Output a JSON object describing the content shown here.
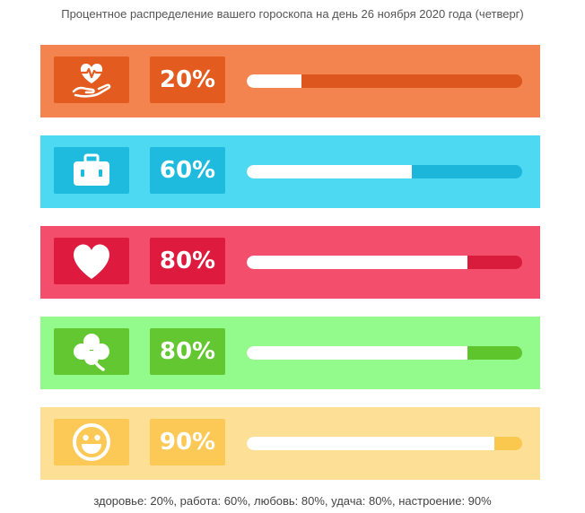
{
  "page": {
    "title": "Процентное распределение вашего гороскопа на день 26 ноября 2020 года (четверг)",
    "summary": "здоровье: 20%, работа: 60%, любовь: 80%, удача: 80%, настроение: 90%"
  },
  "bars": [
    {
      "key": "health",
      "icon": "heart-in-hand-icon",
      "percent_label": "20%",
      "value": 20,
      "colors": {
        "row": "#f3844f",
        "box": "#e35b1f",
        "bar": "#dc561e"
      }
    },
    {
      "key": "work",
      "icon": "briefcase-icon",
      "percent_label": "60%",
      "value": 60,
      "colors": {
        "row": "#4ed9f3",
        "box": "#1fbbdf",
        "bar": "#1db6db"
      }
    },
    {
      "key": "love",
      "icon": "heart-icon",
      "percent_label": "80%",
      "value": 80,
      "colors": {
        "row": "#f34e6b",
        "box": "#de1b3e",
        "bar": "#d91c3b"
      }
    },
    {
      "key": "luck",
      "icon": "clover-icon",
      "percent_label": "80%",
      "value": 80,
      "colors": {
        "row": "#92fb8b",
        "box": "#63c731",
        "bar": "#5fc52c"
      }
    },
    {
      "key": "mood",
      "icon": "smiley-icon",
      "percent_label": "90%",
      "value": 90,
      "colors": {
        "row": "#fddf95",
        "box": "#fcc956",
        "bar": "#fbc84f"
      }
    }
  ]
}
